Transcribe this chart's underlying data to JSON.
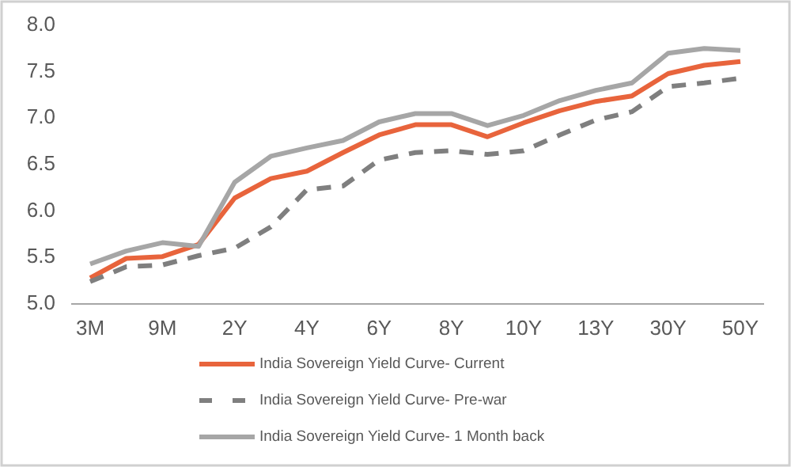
{
  "chart_data": {
    "type": "line",
    "categories": [
      "3M",
      null,
      "9M",
      null,
      "2Y",
      null,
      "4Y",
      null,
      "6Y",
      null,
      "8Y",
      null,
      "10Y",
      null,
      "13Y",
      null,
      "30Y",
      null,
      "50Y"
    ],
    "series": [
      {
        "name": "India Sovereign Yield Curve- Current",
        "color": "#e8643c",
        "line_style": "solid",
        "values": [
          5.28,
          5.49,
          5.51,
          5.64,
          6.14,
          6.35,
          6.43,
          6.63,
          6.82,
          6.93,
          6.93,
          6.8,
          6.95,
          7.08,
          7.18,
          7.24,
          7.48,
          7.57,
          7.61
        ]
      },
      {
        "name": "India Sovereign Yield Curve- Pre-war",
        "color": "#7f7f7f",
        "line_style": "dashed",
        "values": [
          5.24,
          5.4,
          5.42,
          5.52,
          5.6,
          5.83,
          6.23,
          6.27,
          6.55,
          6.63,
          6.65,
          6.61,
          6.65,
          6.82,
          6.98,
          7.07,
          7.34,
          7.38,
          7.43
        ]
      },
      {
        "name": "India Sovereign Yield Curve- 1 Month back",
        "color": "#a6a6a6",
        "line_style": "solid",
        "values": [
          5.43,
          5.57,
          5.66,
          5.62,
          6.31,
          6.59,
          6.68,
          6.76,
          6.96,
          7.05,
          7.05,
          6.92,
          7.03,
          7.19,
          7.3,
          7.38,
          7.7,
          7.75,
          7.73
        ]
      }
    ],
    "ylim": [
      5,
      8
    ],
    "yticks": [
      {
        "value": 5,
        "label": "5.0"
      },
      {
        "value": 5.5,
        "label": "5.5"
      },
      {
        "value": 6,
        "label": "6.0"
      },
      {
        "value": 6.5,
        "label": "6.5"
      },
      {
        "value": 7,
        "label": "7.0"
      },
      {
        "value": 7.5,
        "label": "7.5"
      },
      {
        "value": 8,
        "label": "8.0"
      }
    ],
    "grid": false,
    "legend": "bottom",
    "marker": "none"
  }
}
